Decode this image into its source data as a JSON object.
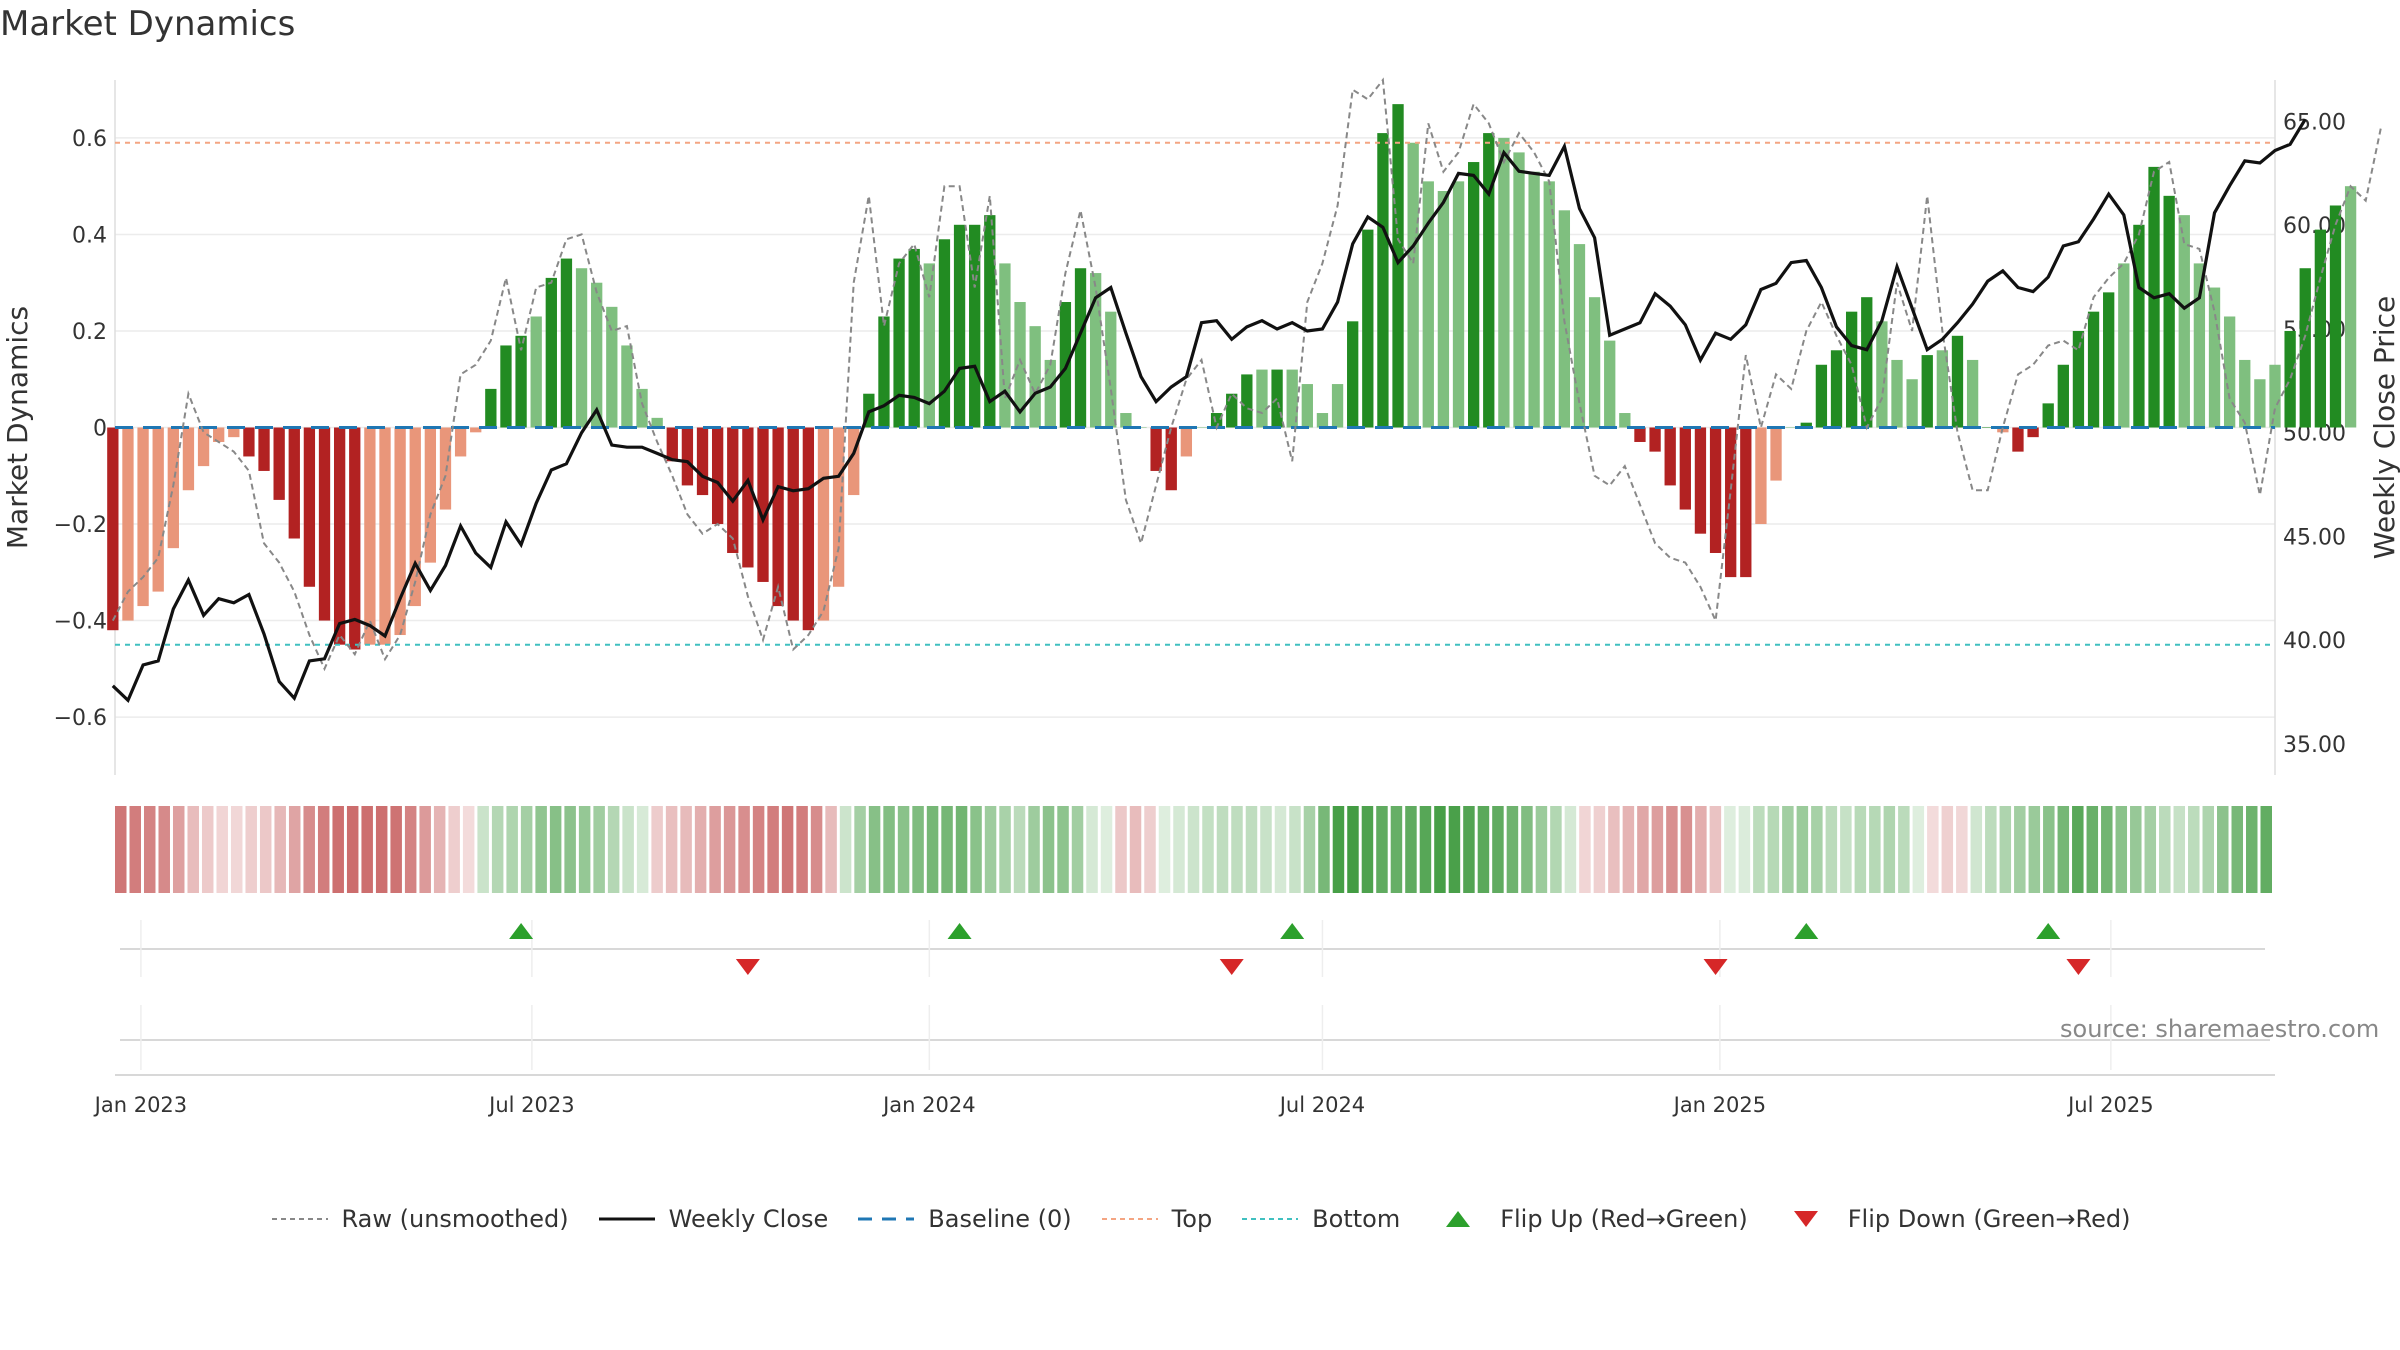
{
  "title": "Market Dynamics",
  "source": "source: sharemaestro.com",
  "colors": {
    "strong_green": "#228b22",
    "light_green": "#7fbf7f",
    "strong_red": "#b22222",
    "light_red": "#e9967a",
    "close_line": "#111111",
    "raw_line": "#888888",
    "baseline": "#1f77b4",
    "top": "#f4a582",
    "bottom": "#40c0c0",
    "flip_up": "#2ca02c",
    "flip_down": "#d62728"
  },
  "chart_data": {
    "type": "bar+line",
    "title": "Market Dynamics",
    "ylabel_left": "Market Dynamics",
    "ylabel_right": "Weekly Close Price",
    "ylim_left": [
      -0.72,
      0.72
    ],
    "ylim_right": [
      33.5,
      67.0
    ],
    "yticks_left": [
      "−0.6",
      "−0.4",
      "−0.2",
      "0",
      "0.2",
      "0.4",
      "0.6"
    ],
    "yticks_right": [
      "35.00",
      "40.00",
      "45.00",
      "50.00",
      "55.00",
      "60.00",
      "65.00"
    ],
    "x_start": "2022-12-20",
    "x_end": "2025-09-15",
    "x_tick_labels": [
      "Jan 2023",
      "Jul 2023",
      "Jan 2024",
      "Jul 2024",
      "Jan 2025",
      "Jul 2025"
    ],
    "x_tick_dates": [
      "2023-01-01",
      "2023-07-01",
      "2024-01-01",
      "2024-07-01",
      "2025-01-01",
      "2025-07-01"
    ],
    "top_level": 0.59,
    "bottom_level": -0.45,
    "baseline": 0,
    "week_start_date": "2022-12-19",
    "momentum": [
      -0.42,
      -0.4,
      -0.37,
      -0.34,
      -0.25,
      -0.13,
      -0.08,
      -0.03,
      -0.02,
      -0.06,
      -0.09,
      -0.15,
      -0.23,
      -0.33,
      -0.4,
      -0.45,
      -0.46,
      -0.45,
      -0.45,
      -0.43,
      -0.37,
      -0.28,
      -0.17,
      -0.06,
      -0.01,
      0.08,
      0.17,
      0.19,
      0.23,
      0.31,
      0.35,
      0.33,
      0.3,
      0.25,
      0.17,
      0.08,
      0.02,
      -0.07,
      -0.12,
      -0.14,
      -0.2,
      -0.26,
      -0.29,
      -0.32,
      -0.37,
      -0.4,
      -0.42,
      -0.4,
      -0.33,
      -0.14,
      0.07,
      0.23,
      0.35,
      0.37,
      0.34,
      0.39,
      0.42,
      0.42,
      0.44,
      0.34,
      0.26,
      0.21,
      0.14,
      0.26,
      0.33,
      0.32,
      0.24,
      0.03,
      0.0,
      -0.09,
      -0.13,
      -0.06,
      0.0,
      0.03,
      0.07,
      0.11,
      0.12,
      0.12,
      0.12,
      0.09,
      0.03,
      0.09,
      0.22,
      0.41,
      0.61,
      0.67,
      0.59,
      0.51,
      0.49,
      0.51,
      0.55,
      0.61,
      0.6,
      0.57,
      0.53,
      0.51,
      0.45,
      0.38,
      0.27,
      0.18,
      0.03,
      -0.03,
      -0.05,
      -0.12,
      -0.17,
      -0.22,
      -0.26,
      -0.31,
      -0.31,
      -0.2,
      -0.11,
      0.0,
      0.01,
      0.13,
      0.16,
      0.24,
      0.27,
      0.22,
      0.14,
      0.1,
      0.15,
      0.16,
      0.19,
      0.14,
      0.0,
      -0.01,
      -0.05,
      -0.02,
      0.05,
      0.13,
      0.2,
      0.24,
      0.28,
      0.34,
      0.42,
      0.54,
      0.48,
      0.44,
      0.34,
      0.29,
      0.23,
      0.14,
      0.1,
      0.13,
      0.2,
      0.33,
      0.41,
      0.46,
      0.5
    ],
    "strength": [
      2,
      1,
      1,
      1,
      1,
      1,
      1,
      1,
      1,
      2,
      2,
      2,
      2,
      2,
      2,
      2,
      2,
      1,
      1,
      1,
      1,
      1,
      1,
      1,
      1,
      2,
      2,
      2,
      1,
      2,
      2,
      1,
      1,
      1,
      1,
      1,
      1,
      2,
      2,
      2,
      2,
      2,
      2,
      2,
      2,
      2,
      2,
      1,
      1,
      1,
      2,
      2,
      2,
      2,
      1,
      2,
      2,
      2,
      2,
      1,
      1,
      1,
      1,
      2,
      2,
      1,
      1,
      1,
      1,
      2,
      2,
      1,
      1,
      2,
      2,
      2,
      1,
      2,
      1,
      1,
      1,
      1,
      2,
      2,
      2,
      2,
      1,
      1,
      1,
      1,
      2,
      2,
      1,
      1,
      1,
      1,
      1,
      1,
      1,
      1,
      1,
      2,
      2,
      2,
      2,
      2,
      2,
      2,
      2,
      1,
      1,
      1,
      2,
      2,
      2,
      2,
      2,
      1,
      1,
      1,
      2,
      1,
      2,
      1,
      2,
      1,
      2,
      2,
      2,
      2,
      2,
      2,
      2,
      1,
      2,
      2,
      2,
      1,
      1,
      1,
      1,
      1,
      1,
      1,
      2,
      2,
      2,
      2
    ],
    "raw": [
      -0.4,
      -0.34,
      -0.31,
      -0.27,
      -0.12,
      0.07,
      -0.01,
      -0.03,
      -0.05,
      -0.09,
      -0.24,
      -0.28,
      -0.34,
      -0.43,
      -0.5,
      -0.43,
      -0.47,
      -0.4,
      -0.48,
      -0.43,
      -0.32,
      -0.18,
      -0.1,
      0.11,
      0.13,
      0.18,
      0.31,
      0.16,
      0.29,
      0.3,
      0.39,
      0.4,
      0.28,
      0.2,
      0.21,
      0.05,
      -0.03,
      -0.1,
      -0.18,
      -0.22,
      -0.2,
      -0.23,
      -0.35,
      -0.44,
      -0.33,
      -0.46,
      -0.43,
      -0.38,
      -0.25,
      0.3,
      0.48,
      0.21,
      0.34,
      0.38,
      0.27,
      0.5,
      0.5,
      0.29,
      0.48,
      0.06,
      0.14,
      0.07,
      0.13,
      0.32,
      0.45,
      0.29,
      0.08,
      -0.15,
      -0.24,
      -0.12,
      0.0,
      0.1,
      0.14,
      0.0,
      0.07,
      0.04,
      0.03,
      0.06,
      -0.07,
      0.26,
      0.34,
      0.46,
      0.7,
      0.68,
      0.72,
      0.39,
      0.34,
      0.63,
      0.53,
      0.57,
      0.67,
      0.63,
      0.55,
      0.61,
      0.57,
      0.51,
      0.22,
      0.05,
      -0.1,
      -0.12,
      -0.08,
      -0.16,
      -0.24,
      -0.27,
      -0.28,
      -0.33,
      -0.4,
      -0.13,
      0.15,
      0.0,
      0.11,
      0.08,
      0.2,
      0.26,
      0.19,
      0.13,
      0.0,
      0.06,
      0.3,
      0.2,
      0.48,
      0.2,
      -0.01,
      -0.13,
      -0.13,
      0.0,
      0.11,
      0.13,
      0.17,
      0.18,
      0.16,
      0.27,
      0.31,
      0.34,
      0.4,
      0.53,
      0.55,
      0.38,
      0.37,
      0.24,
      0.06,
      0.01,
      -0.14,
      0.04,
      0.1,
      0.19,
      0.31,
      0.42,
      0.5,
      0.47,
      0.62
    ],
    "close": [
      37.8,
      37.1,
      38.8,
      39.0,
      41.5,
      42.9,
      41.2,
      42.0,
      41.8,
      42.2,
      40.3,
      38.0,
      37.2,
      39.0,
      39.1,
      40.8,
      41.0,
      40.7,
      40.2,
      42.0,
      43.7,
      42.4,
      43.6,
      45.5,
      44.2,
      43.5,
      45.7,
      44.6,
      46.6,
      48.2,
      48.5,
      50.0,
      51.1,
      49.4,
      49.3,
      49.3,
      49.0,
      48.7,
      48.6,
      47.9,
      47.6,
      46.7,
      47.7,
      45.8,
      47.4,
      47.2,
      47.3,
      47.8,
      47.9,
      49.0,
      51.0,
      51.3,
      51.8,
      51.7,
      51.4,
      52.0,
      53.1,
      53.2,
      51.5,
      52.0,
      51.0,
      51.9,
      52.2,
      53.1,
      54.8,
      56.5,
      57.0,
      54.8,
      52.7,
      51.5,
      52.2,
      52.7,
      55.3,
      55.4,
      54.5,
      55.1,
      55.4,
      55.0,
      55.3,
      54.9,
      55.0,
      56.3,
      59.1,
      60.4,
      59.9,
      58.2,
      59.0,
      60.1,
      61.1,
      62.5,
      62.4,
      61.5,
      63.5,
      62.6,
      62.5,
      62.4,
      63.8,
      60.8,
      59.4,
      54.7,
      55.0,
      55.3,
      56.7,
      56.1,
      55.2,
      53.5,
      54.8,
      54.5,
      55.2,
      56.9,
      57.2,
      58.2,
      58.3,
      57.0,
      55.1,
      54.2,
      54.0,
      55.4,
      58.0,
      56.0,
      54.0,
      54.5,
      55.3,
      56.2,
      57.3,
      57.8,
      57.0,
      56.8,
      57.5,
      59.0,
      59.2,
      60.3,
      61.5,
      60.5,
      57.0,
      56.5,
      56.7,
      56.0,
      56.5,
      60.6,
      61.9,
      63.1,
      63.0,
      63.6,
      63.9,
      65.1
    ]
  },
  "flips": {
    "up_weeks": [
      27,
      56,
      78,
      112,
      128
    ],
    "down_weeks": [
      42,
      74,
      106,
      130
    ]
  },
  "legend": [
    {
      "key": "raw",
      "label": "Raw (unsmoothed)"
    },
    {
      "key": "close",
      "label": "Weekly Close"
    },
    {
      "key": "baseline",
      "label": "Baseline (0)"
    },
    {
      "key": "top",
      "label": "Top"
    },
    {
      "key": "bottom",
      "label": "Bottom"
    },
    {
      "key": "flip_up",
      "label": "Flip Up (Red→Green)"
    },
    {
      "key": "flip_down",
      "label": "Flip Down (Green→Red)"
    }
  ]
}
